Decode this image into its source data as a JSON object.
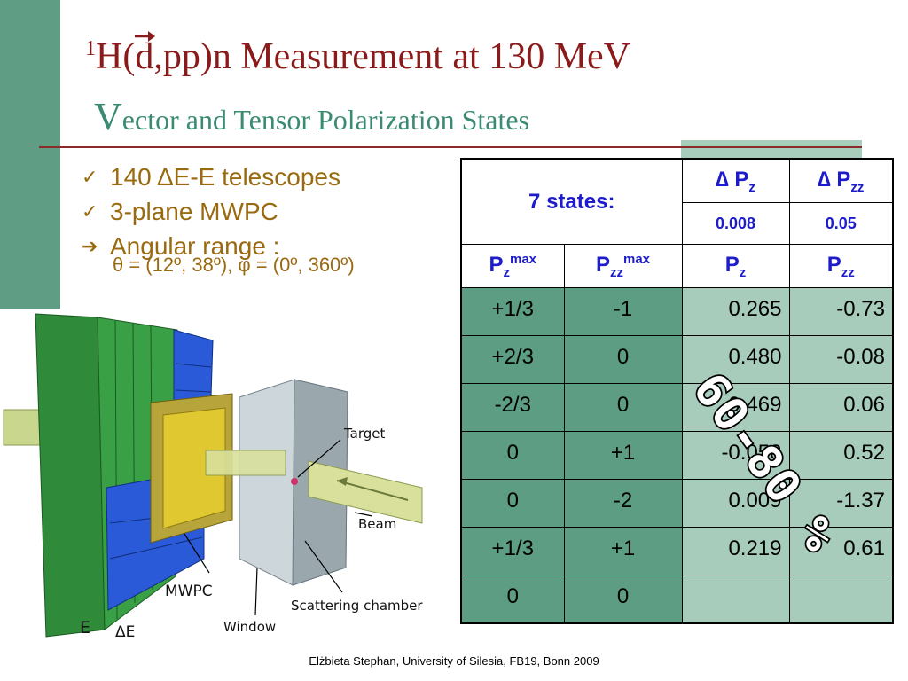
{
  "slide": {
    "title_sup": "1",
    "title_pre": "H(",
    "title_d": "d",
    "title_post": ",pp)n Measurement at 130 MeV",
    "subtitle_initial": "V",
    "subtitle_rest": "ector and Tensor Polarization States"
  },
  "bullets": [
    {
      "marker": "✓",
      "text": "140 ΔE-E telescopes"
    },
    {
      "marker": "✓",
      "text": "3-plane MWPC"
    },
    {
      "marker": "➔",
      "text": "Angular range :"
    }
  ],
  "angular_detail": "θ = (12º, 38º), φ = (0º, 360º)",
  "figure_labels": {
    "target": "Target",
    "beam": "Beam",
    "mwpc": "MWPC",
    "scattering_chamber": "Scattering chamber",
    "window": "Window",
    "e": "E",
    "delta_e": "ΔE"
  },
  "table": {
    "states_label": "7 states:",
    "delta_pz_label": "∆ P",
    "delta_pz_sub": "z",
    "delta_pzz_label": "∆ P",
    "delta_pzz_sub": "zz",
    "delta_pz_value": "0.008",
    "delta_pzz_value": "0.05",
    "col_pzmax": "P",
    "col_pzmax_sub": "z",
    "col_pzmax_sup": "max",
    "col_pzzmax": "P",
    "col_pzzmax_sub": "zz",
    "col_pzzmax_sup": "max",
    "col_pz": "P",
    "col_pz_sub": "z",
    "col_pzz": "P",
    "col_pzz_sub": "zz",
    "rows": [
      {
        "pzmax": "+1/3",
        "pzzmax": "-1",
        "pz": "0.265",
        "pzz": "-0.73"
      },
      {
        "pzmax": "+2/3",
        "pzzmax": "0",
        "pz": "0.480",
        "pzz": "-0.08"
      },
      {
        "pzmax": "-2/3",
        "pzzmax": "0",
        "pz": "-0.469",
        "pzz": "0.06"
      },
      {
        "pzmax": "0",
        "pzzmax": "+1",
        "pz": "-0.058",
        "pzz": "0.52"
      },
      {
        "pzmax": "0",
        "pzzmax": "-2",
        "pz": "0.009",
        "pzz": "-1.37"
      },
      {
        "pzmax": "+1/3",
        "pzzmax": "+1",
        "pz": "0.219",
        "pzz": "0.61"
      },
      {
        "pzmax": "0",
        "pzzmax": "0",
        "pz": "",
        "pzz": ""
      }
    ]
  },
  "stamp_text": "60-80 %",
  "footer": "Elżbieta Stephan, University of Silesia, FB19, Bonn 2009",
  "colors": {
    "title": "#8b1a1a",
    "subtitle": "#3b8a73",
    "bullets": "#9a6a10",
    "table_header": "#1c1ccc",
    "cell_dark": "#5c9d84",
    "cell_light": "#a7ccbc"
  }
}
